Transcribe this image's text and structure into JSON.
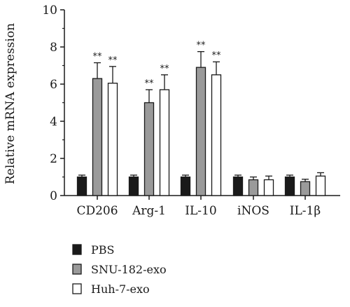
{
  "chart_data": {
    "type": "bar",
    "ylabel": "Relative mRNA expression",
    "ylim": [
      0,
      10
    ],
    "yticks": [
      "0",
      "2",
      "4",
      "6",
      "8",
      "10"
    ],
    "categories": [
      "CD206",
      "Arg-1",
      "IL-10",
      "iNOS",
      "IL-1β"
    ],
    "series": [
      {
        "name": "PBS",
        "values": [
          1.0,
          1.0,
          1.0,
          1.0,
          1.0
        ],
        "errors": [
          0.1,
          0.1,
          0.1,
          0.1,
          0.1
        ],
        "color": "#1a1a1a"
      },
      {
        "name": "SNU-182-exo",
        "values": [
          6.3,
          5.0,
          6.9,
          0.85,
          0.75
        ],
        "errors": [
          0.85,
          0.7,
          0.85,
          0.15,
          0.13
        ],
        "color": "#9a9a9a"
      },
      {
        "name": "Huh-7-exo",
        "values": [
          6.05,
          5.7,
          6.5,
          0.85,
          1.05
        ],
        "errors": [
          0.9,
          0.8,
          0.7,
          0.2,
          0.18
        ],
        "color": "#ffffff"
      }
    ],
    "significance": [
      [
        "",
        "**",
        "**"
      ],
      [
        "",
        "**",
        "**"
      ],
      [
        "",
        "**",
        "**"
      ],
      [
        "",
        "",
        ""
      ],
      [
        "",
        "",
        ""
      ]
    ],
    "legend_position": "bottom-left"
  }
}
